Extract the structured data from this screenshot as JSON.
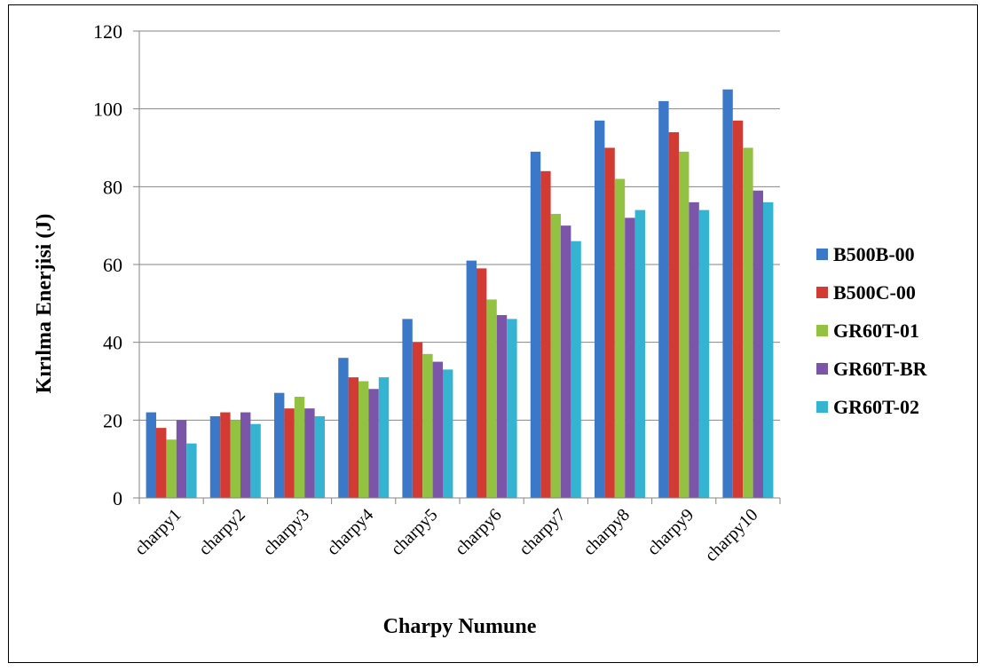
{
  "chart_data": {
    "type": "bar",
    "title": "",
    "xlabel": "Charpy Numune",
    "ylabel": "Kırılma Enerjisi (J)",
    "ylim": [
      0,
      120
    ],
    "yticks": [
      0,
      20,
      40,
      60,
      80,
      100,
      120
    ],
    "grid": true,
    "legend_position": "right",
    "categories": [
      "charpy1",
      "charpy2",
      "charpy3",
      "charpy4",
      "charpy5",
      "charpy6",
      "charpy7",
      "charpy8",
      "charpy9",
      "charpy10"
    ],
    "series": [
      {
        "name": "B500B-00",
        "color": "#3c78c8",
        "values": [
          22,
          21,
          27,
          36,
          46,
          61,
          89,
          97,
          102,
          105
        ]
      },
      {
        "name": "B500C-00",
        "color": "#d13b34",
        "values": [
          18,
          22,
          23,
          31,
          40,
          59,
          84,
          90,
          94,
          97
        ]
      },
      {
        "name": "GR60T-01",
        "color": "#93c243",
        "values": [
          15,
          20,
          26,
          30,
          37,
          51,
          73,
          82,
          89,
          90
        ]
      },
      {
        "name": "GR60T-BR",
        "color": "#7a55a8",
        "values": [
          20,
          22,
          23,
          28,
          35,
          47,
          70,
          72,
          76,
          79
        ]
      },
      {
        "name": "GR60T-02",
        "color": "#34b4d0",
        "values": [
          14,
          19,
          21,
          31,
          33,
          46,
          66,
          74,
          74,
          76
        ]
      }
    ]
  }
}
